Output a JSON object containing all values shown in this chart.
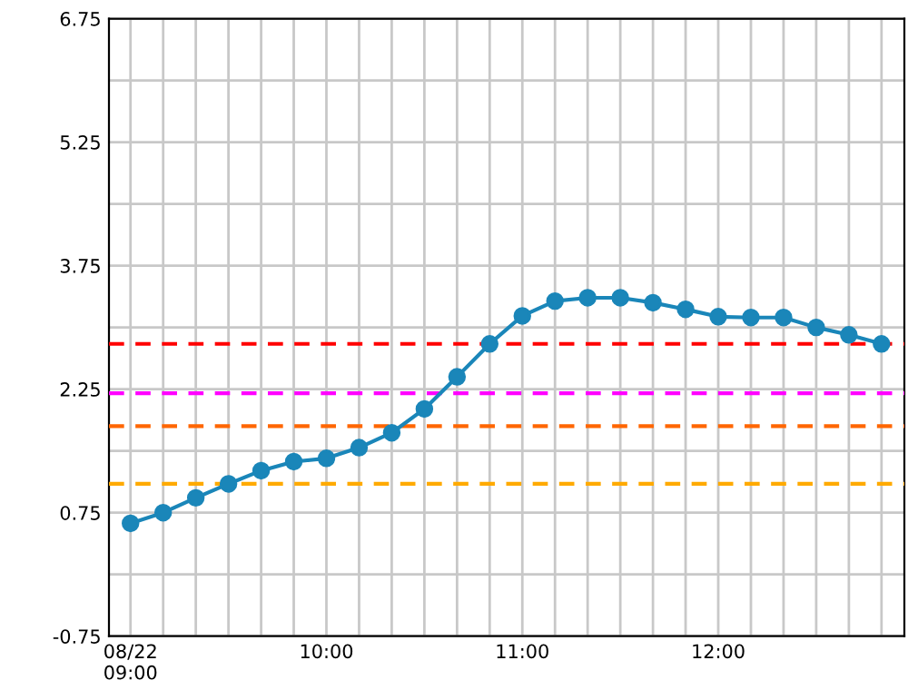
{
  "chart_data": {
    "type": "line",
    "x": [
      9.0,
      9.1667,
      9.3333,
      9.5,
      9.6667,
      9.8333,
      10.0,
      10.1667,
      10.3333,
      10.5,
      10.6667,
      10.8333,
      11.0,
      11.1667,
      11.3333,
      11.5,
      11.6667,
      11.8333,
      12.0,
      12.1667,
      12.3333,
      12.5,
      12.6667,
      12.8333
    ],
    "series": [
      {
        "color": "#1a86b9",
        "values": [
          0.62,
          0.75,
          0.93,
          1.1,
          1.26,
          1.37,
          1.41,
          1.54,
          1.72,
          2.01,
          2.4,
          2.8,
          3.14,
          3.32,
          3.36,
          3.36,
          3.3,
          3.22,
          3.13,
          3.12,
          3.12,
          3.0,
          2.91,
          2.8
        ]
      }
    ],
    "marker": "circle",
    "line_style": "solid",
    "grid": true,
    "legend": false,
    "xlim": [
      8.89,
      12.95
    ],
    "xticks": [
      {
        "value": 9,
        "label": "08/22\n09:00"
      },
      {
        "value": 9.1667,
        "label": null
      },
      {
        "value": 9.3333,
        "label": null
      },
      {
        "value": 9.5,
        "label": null
      },
      {
        "value": 9.6667,
        "label": null
      },
      {
        "value": 9.8333,
        "label": null
      },
      {
        "value": 10,
        "label": "10:00"
      },
      {
        "value": 10.1667,
        "label": null
      },
      {
        "value": 10.3333,
        "label": null
      },
      {
        "value": 10.5,
        "label": null
      },
      {
        "value": 10.6667,
        "label": null
      },
      {
        "value": 10.8333,
        "label": null
      },
      {
        "value": 11,
        "label": "11:00"
      },
      {
        "value": 11.1667,
        "label": null
      },
      {
        "value": 11.3333,
        "label": null
      },
      {
        "value": 11.5,
        "label": null
      },
      {
        "value": 11.6667,
        "label": null
      },
      {
        "value": 11.8333,
        "label": null
      },
      {
        "value": 12,
        "label": "12:00"
      },
      {
        "value": 12.1667,
        "label": null
      },
      {
        "value": 12.3333,
        "label": null
      },
      {
        "value": 12.5,
        "label": null
      },
      {
        "value": 12.6667,
        "label": null
      },
      {
        "value": 12.8333,
        "label": null
      }
    ],
    "ylim": [
      -0.75,
      6.75
    ],
    "yticks": [
      -0.75,
      {
        "value": 0,
        "label": null
      },
      0.75,
      {
        "value": 1.5,
        "label": null
      },
      2.25,
      {
        "value": 3,
        "label": null
      },
      3.75,
      {
        "value": 4.5,
        "label": null
      },
      5.25,
      {
        "value": 6,
        "label": null
      },
      6.75
    ],
    "ref_lines": [
      {
        "axis": "y",
        "value": 2.8,
        "color": "#ff0000",
        "line_style": "dashed"
      },
      {
        "axis": "y",
        "value": 2.2,
        "color": "#ff00ff",
        "line_style": "dashed"
      },
      {
        "axis": "y",
        "value": 1.8,
        "color": "#ff6600",
        "line_style": "dashed"
      },
      {
        "axis": "y",
        "value": 1.1,
        "color": "#ffaa00",
        "line_style": "dashed"
      }
    ]
  }
}
